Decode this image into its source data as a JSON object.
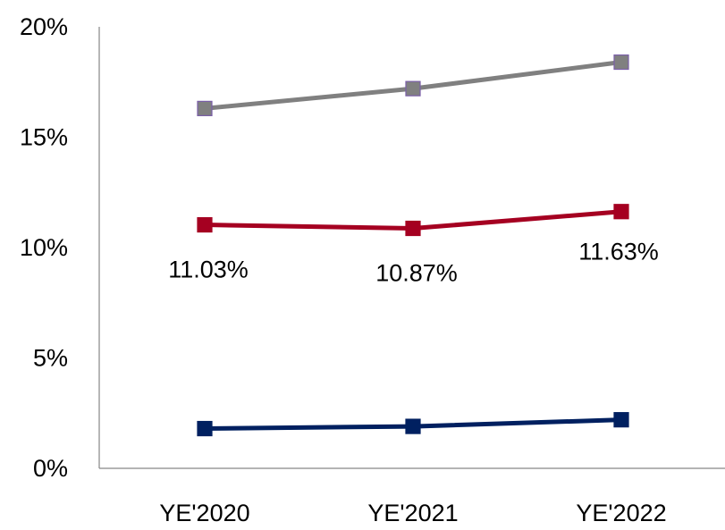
{
  "chart_data": {
    "type": "line",
    "categories": [
      "YE'2020",
      "YE'2021",
      "YE'2022"
    ],
    "series": [
      {
        "values": [
          16.3,
          17.2,
          18.4
        ],
        "color": "#808080",
        "marker": "square"
      },
      {
        "values": [
          11.03,
          10.87,
          11.63
        ],
        "color": "#A50021",
        "marker": "square",
        "data_labels": [
          "11.03%",
          "10.87%",
          "11.63%"
        ]
      },
      {
        "values": [
          1.8,
          1.9,
          2.2
        ],
        "color": "#002060",
        "marker": "square"
      }
    ],
    "title": "",
    "xlabel": "",
    "ylabel": "",
    "ylim": [
      0,
      20
    ],
    "yticks": [
      0,
      5,
      10,
      15,
      20
    ],
    "ytick_labels": [
      "0%",
      "5%",
      "10%",
      "15%",
      "20%"
    ],
    "grid": false,
    "legend": "none"
  }
}
